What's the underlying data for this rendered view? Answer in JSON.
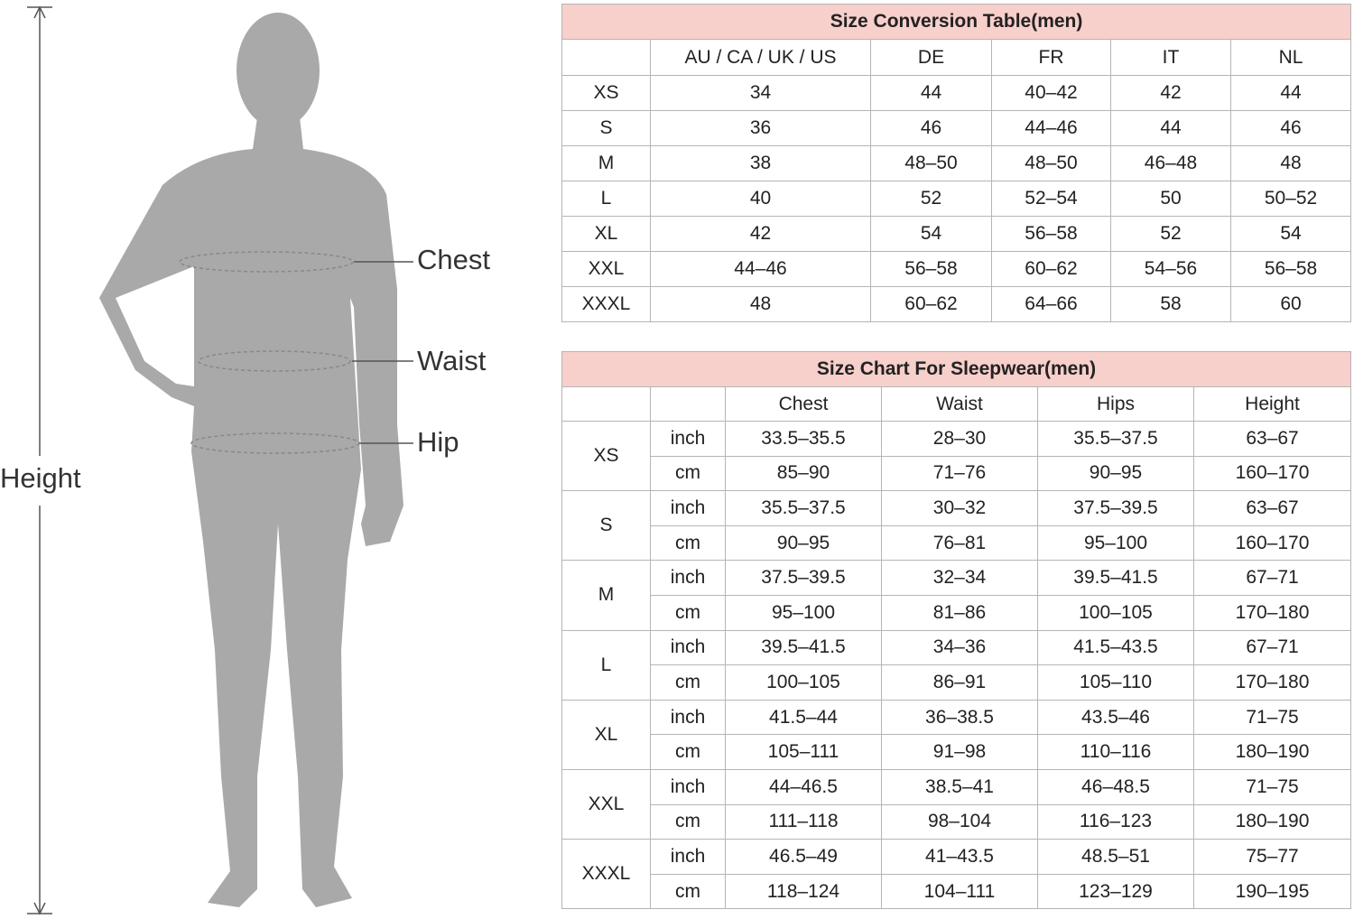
{
  "figure": {
    "labels": {
      "chest": "Chest",
      "waist": "Waist",
      "hip": "Hip",
      "height": "Height"
    }
  },
  "conversion_table": {
    "title": "Size Conversion Table(men)",
    "columns": [
      "AU / CA / UK / US",
      "DE",
      "FR",
      "IT",
      "NL"
    ],
    "rows": [
      {
        "size": "XS",
        "values": [
          "34",
          "44",
          "40–42",
          "42",
          "44"
        ]
      },
      {
        "size": "S",
        "values": [
          "36",
          "46",
          "44–46",
          "44",
          "46"
        ]
      },
      {
        "size": "M",
        "values": [
          "38",
          "48–50",
          "48–50",
          "46–48",
          "48"
        ]
      },
      {
        "size": "L",
        "values": [
          "40",
          "52",
          "52–54",
          "50",
          "50–52"
        ]
      },
      {
        "size": "XL",
        "values": [
          "42",
          "54",
          "56–58",
          "52",
          "54"
        ]
      },
      {
        "size": "XXL",
        "values": [
          "44–46",
          "56–58",
          "60–62",
          "54–56",
          "56–58"
        ]
      },
      {
        "size": "XXXL",
        "values": [
          "48",
          "60–62",
          "64–66",
          "58",
          "60"
        ]
      }
    ]
  },
  "sleepwear_table": {
    "title": "Size Chart For Sleepwear(men)",
    "columns": [
      "Chest",
      "Waist",
      "Hips",
      "Height"
    ],
    "rows": [
      {
        "size": "XS",
        "units": [
          {
            "unit": "inch",
            "values": [
              "33.5–35.5",
              "28–30",
              "35.5–37.5",
              "63–67"
            ]
          },
          {
            "unit": "cm",
            "values": [
              "85–90",
              "71–76",
              "90–95",
              "160–170"
            ]
          }
        ]
      },
      {
        "size": "S",
        "units": [
          {
            "unit": "inch",
            "values": [
              "35.5–37.5",
              "30–32",
              "37.5–39.5",
              "63–67"
            ]
          },
          {
            "unit": "cm",
            "values": [
              "90–95",
              "76–81",
              "95–100",
              "160–170"
            ]
          }
        ]
      },
      {
        "size": "M",
        "units": [
          {
            "unit": "inch",
            "values": [
              "37.5–39.5",
              "32–34",
              "39.5–41.5",
              "67–71"
            ]
          },
          {
            "unit": "cm",
            "values": [
              "95–100",
              "81–86",
              "100–105",
              "170–180"
            ]
          }
        ]
      },
      {
        "size": "L",
        "units": [
          {
            "unit": "inch",
            "values": [
              "39.5–41.5",
              "34–36",
              "41.5–43.5",
              "67–71"
            ]
          },
          {
            "unit": "cm",
            "values": [
              "100–105",
              "86–91",
              "105–110",
              "170–180"
            ]
          }
        ]
      },
      {
        "size": "XL",
        "units": [
          {
            "unit": "inch",
            "values": [
              "41.5–44",
              "36–38.5",
              "43.5–46",
              "71–75"
            ]
          },
          {
            "unit": "cm",
            "values": [
              "105–111",
              "91–98",
              "110–116",
              "180–190"
            ]
          }
        ]
      },
      {
        "size": "XXL",
        "units": [
          {
            "unit": "inch",
            "values": [
              "44–46.5",
              "38.5–41",
              "46–48.5",
              "71–75"
            ]
          },
          {
            "unit": "cm",
            "values": [
              "111–118",
              "98–104",
              "116–123",
              "180–190"
            ]
          }
        ]
      },
      {
        "size": "XXXL",
        "units": [
          {
            "unit": "inch",
            "values": [
              "46.5–49",
              "41–43.5",
              "48.5–51",
              "75–77"
            ]
          },
          {
            "unit": "cm",
            "values": [
              "118–124",
              "104–111",
              "123–129",
              "190–195"
            ]
          }
        ]
      }
    ]
  }
}
